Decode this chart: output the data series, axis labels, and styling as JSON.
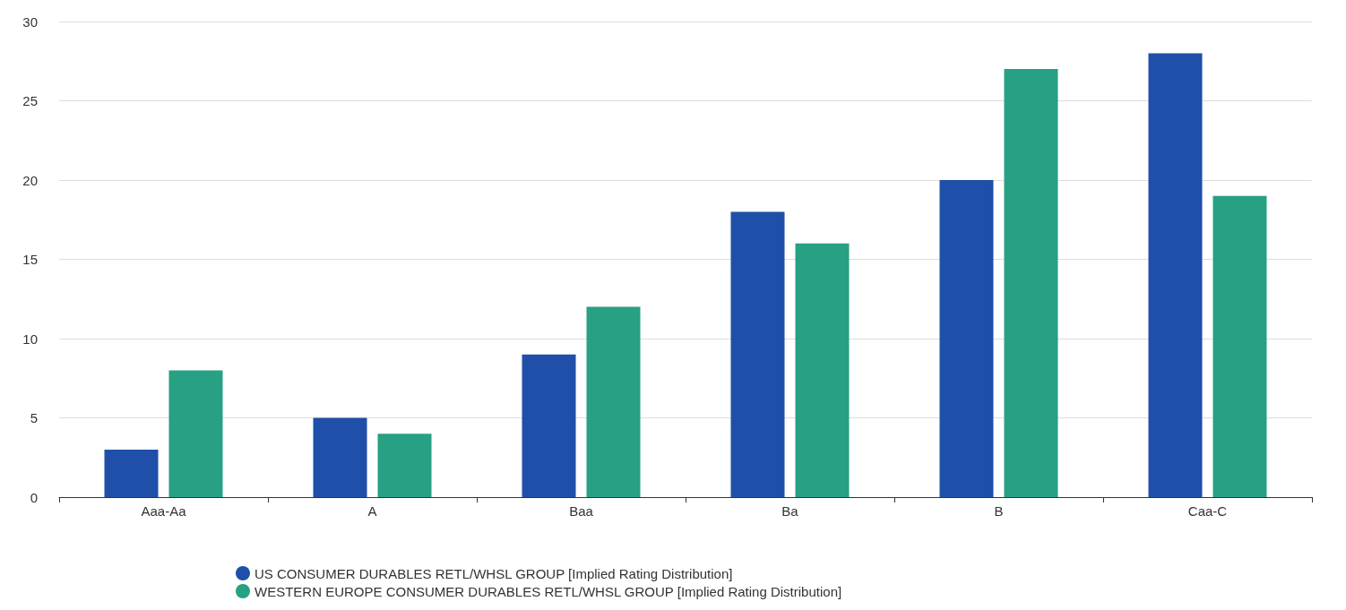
{
  "chart_data": {
    "type": "bar",
    "categories": [
      "Aaa-Aa",
      "A",
      "Baa",
      "Ba",
      "B",
      "Caa-C"
    ],
    "series": [
      {
        "name": "US CONSUMER DURABLES RETL/WHSL GROUP [Implied Rating Distribution]",
        "color": "#1f4fa8",
        "values": [
          3,
          5,
          9,
          18,
          20,
          28
        ]
      },
      {
        "name": "WESTERN EUROPE CONSUMER DURABLES RETL/WHSL GROUP [Implied Rating Distribution]",
        "color": "#27a083",
        "values": [
          8,
          4,
          12,
          16,
          27,
          19
        ]
      }
    ],
    "ylim": [
      0,
      30
    ],
    "yticks": [
      0,
      5,
      10,
      15,
      20,
      25,
      30
    ],
    "grid": "y",
    "legend": "bottom"
  }
}
